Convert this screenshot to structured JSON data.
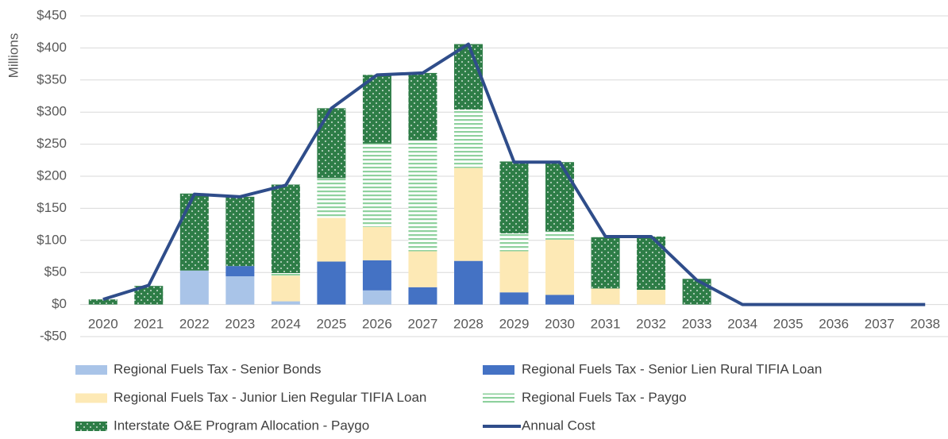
{
  "chart_data": {
    "type": "bar",
    "stacked": true,
    "y_label": "Millions",
    "categories": [
      "2020",
      "2021",
      "2022",
      "2023",
      "2024",
      "2025",
      "2026",
      "2027",
      "2028",
      "2029",
      "2030",
      "2031",
      "2032",
      "2033",
      "2034",
      "2035",
      "2036",
      "2037",
      "2038"
    ],
    "series": [
      {
        "name": "Regional Fuels Tax - Senior Bonds",
        "color": "#a9c4e8",
        "values": [
          0,
          0,
          53,
          44,
          5,
          0,
          22,
          0,
          0,
          0,
          0,
          0,
          0,
          0,
          0,
          0,
          0,
          0,
          0
        ]
      },
      {
        "name": "Regional Fuels Tax - Senior Lien Rural TIFIA Loan",
        "color": "#4472c4",
        "values": [
          0,
          0,
          0,
          16,
          0,
          67,
          47,
          27,
          68,
          19,
          15,
          0,
          0,
          0,
          0,
          0,
          0,
          0,
          0
        ]
      },
      {
        "name": "Regional Fuels Tax - Junior Lien Regular TIFIA Loan",
        "color": "#fde9b5",
        "values": [
          0,
          0,
          0,
          0,
          40,
          68,
          52,
          56,
          145,
          64,
          86,
          25,
          23,
          0,
          0,
          0,
          0,
          0,
          0
        ]
      },
      {
        "name": "Regional Fuels Tax - Paygo",
        "color": "#8fd19e",
        "pattern": "stripes",
        "values": [
          0,
          0,
          0,
          0,
          4,
          62,
          130,
          173,
          91,
          28,
          13,
          0,
          0,
          0,
          0,
          0,
          0,
          0,
          0
        ]
      },
      {
        "name": "Interstate O&E Program Allocation - Paygo",
        "color": "#2e7d47",
        "pattern": "dots",
        "values": [
          8,
          29,
          120,
          108,
          138,
          109,
          107,
          105,
          102,
          112,
          108,
          80,
          83,
          40,
          0,
          0,
          0,
          0,
          0
        ]
      },
      {
        "name": "Annual Cost",
        "type": "line",
        "color": "#2f4d8a",
        "values": [
          8,
          30,
          172,
          168,
          186,
          306,
          358,
          361,
          406,
          222,
          222,
          106,
          106,
          38,
          0,
          0,
          0,
          0,
          0
        ]
      }
    ],
    "ylim": [
      -50,
      450
    ],
    "yticks": [
      {
        "value": -50,
        "label": "-$50"
      },
      {
        "value": 0,
        "label": "$0"
      },
      {
        "value": 50,
        "label": "$50"
      },
      {
        "value": 100,
        "label": "$100"
      },
      {
        "value": 150,
        "label": "$150"
      },
      {
        "value": 200,
        "label": "$200"
      },
      {
        "value": 250,
        "label": "$250"
      },
      {
        "value": 300,
        "label": "$300"
      },
      {
        "value": 350,
        "label": "$350"
      },
      {
        "value": 400,
        "label": "$400"
      },
      {
        "value": 450,
        "label": "$450"
      }
    ],
    "grid": true,
    "legend": "bottom"
  }
}
